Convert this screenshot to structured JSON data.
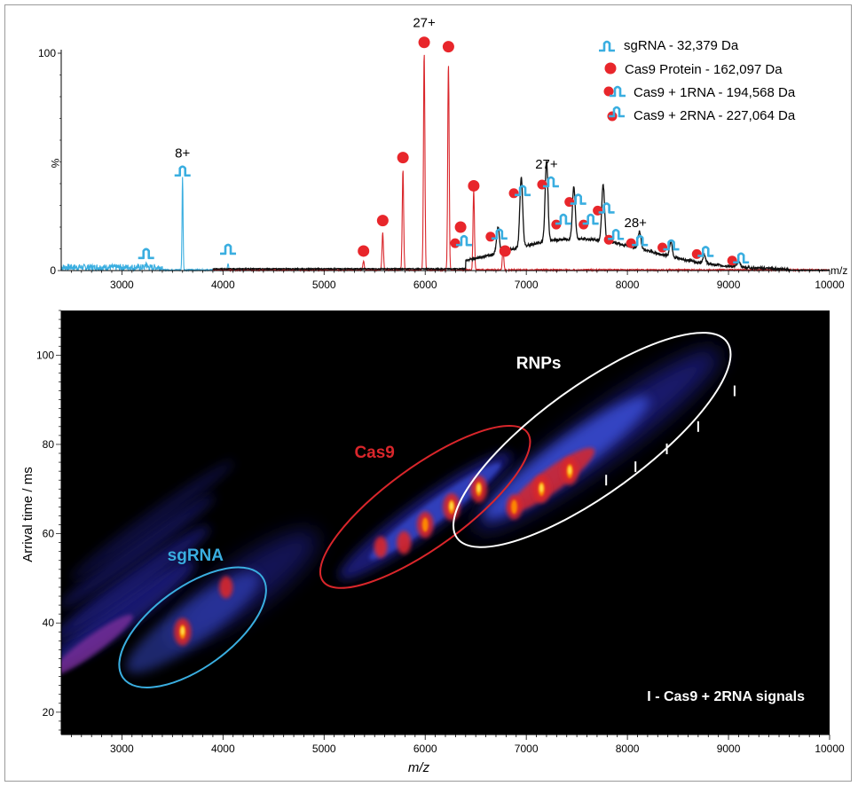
{
  "chart_data": [
    {
      "type": "line",
      "xlabel": "m/z",
      "ylabel": "%",
      "xlim": [
        2400,
        10000
      ],
      "ylim": [
        0,
        100
      ],
      "x_ticks": [
        3000,
        4000,
        5000,
        6000,
        7000,
        8000,
        9000,
        10000
      ],
      "y_ticks": [
        0,
        100
      ],
      "legend_position": "top-right",
      "legend": [
        {
          "label": "sgRNA - 32,379 Da",
          "marker": "rna-icon"
        },
        {
          "label": "Cas9 Protein - 162,097 Da",
          "marker": "red-dot"
        },
        {
          "label": "Cas9 + 1RNA - 194,568 Da",
          "marker": "dot-plus-one-rna"
        },
        {
          "label": "Cas9 + 2RNA - 227,064 Da",
          "marker": "dot-plus-two-rna"
        }
      ],
      "series": [
        {
          "color": "#3aaee0",
          "peaks": [
            {
              "x": 3240,
              "y": 2
            },
            {
              "x": 3600,
              "y": 43
            },
            {
              "x": 4050,
              "y": 3
            }
          ]
        },
        {
          "color": "#d9262b",
          "peaks": [
            {
              "x": 5390,
              "y": 4
            },
            {
              "x": 5580,
              "y": 17
            },
            {
              "x": 5780,
              "y": 46
            },
            {
              "x": 5990,
              "y": 100
            },
            {
              "x": 6230,
              "y": 95
            },
            {
              "x": 6480,
              "y": 37
            },
            {
              "x": 6770,
              "y": 10
            }
          ]
        },
        {
          "color": "#111111",
          "peaks": [
            {
              "x": 6720,
              "y": 12
            },
            {
              "x": 6950,
              "y": 32
            },
            {
              "x": 7200,
              "y": 37
            },
            {
              "x": 7470,
              "y": 24
            },
            {
              "x": 7760,
              "y": 26
            },
            {
              "x": 8120,
              "y": 8
            },
            {
              "x": 8430,
              "y": 7
            },
            {
              "x": 8760,
              "y": 4
            },
            {
              "x": 9100,
              "y": 3
            }
          ]
        }
      ],
      "markers": [
        {
          "x": 3240,
          "y": 7,
          "kind": "rna"
        },
        {
          "x": 3600,
          "y": 45,
          "kind": "rna"
        },
        {
          "x": 4050,
          "y": 9,
          "kind": "rna"
        },
        {
          "x": 5390,
          "y": 9,
          "kind": "dot"
        },
        {
          "x": 5580,
          "y": 23,
          "kind": "dot"
        },
        {
          "x": 5780,
          "y": 52,
          "kind": "dot"
        },
        {
          "x": 5990,
          "y": 105,
          "kind": "dot"
        },
        {
          "x": 6230,
          "y": 103,
          "kind": "dot"
        },
        {
          "x": 6480,
          "y": 39,
          "kind": "dot"
        },
        {
          "x": 6350,
          "y": 20,
          "kind": "dot"
        },
        {
          "x": 6790,
          "y": 9,
          "kind": "dot"
        },
        {
          "x": 6340,
          "y": 13,
          "kind": "dot1"
        },
        {
          "x": 6690,
          "y": 16,
          "kind": "dot1"
        },
        {
          "x": 6920,
          "y": 36,
          "kind": "dot1"
        },
        {
          "x": 7200,
          "y": 40,
          "kind": "dot1"
        },
        {
          "x": 7470,
          "y": 32,
          "kind": "dot1"
        },
        {
          "x": 7750,
          "y": 28,
          "kind": "dot1"
        },
        {
          "x": 8080,
          "y": 13,
          "kind": "dot1"
        },
        {
          "x": 8390,
          "y": 11,
          "kind": "dot1"
        },
        {
          "x": 8730,
          "y": 8,
          "kind": "dot1"
        },
        {
          "x": 9080,
          "y": 5,
          "kind": "dot1"
        },
        {
          "x": 7340,
          "y": 22,
          "kind": "dot2"
        },
        {
          "x": 7610,
          "y": 22,
          "kind": "dot2"
        },
        {
          "x": 7860,
          "y": 15,
          "kind": "dot2"
        }
      ],
      "annotations": [
        {
          "text": "27+",
          "x": 5990,
          "y": 112
        },
        {
          "text": "8+",
          "x": 3600,
          "y": 52
        },
        {
          "text": "27+",
          "x": 7200,
          "y": 47
        },
        {
          "text": "28+",
          "x": 8080,
          "y": 20
        }
      ]
    },
    {
      "type": "heatmap",
      "xlabel": "m/z",
      "ylabel": "Arrival time / ms",
      "xlim": [
        2400,
        10000
      ],
      "ylim": [
        15,
        110
      ],
      "x_ticks": [
        3000,
        4000,
        5000,
        6000,
        7000,
        8000,
        9000,
        10000
      ],
      "y_ticks": [
        20,
        40,
        60,
        80,
        100
      ],
      "colormap": [
        "#000000",
        "#1a1f7a",
        "#3a4fd8",
        "#d9262b",
        "#ff8c00",
        "#ffe24d"
      ],
      "regions": [
        {
          "label": "sgRNA",
          "color": "#3aaee0",
          "cx": 3700,
          "cy": 39,
          "rx_mz": 850,
          "ry_ms": 9
        },
        {
          "label": "Cas9",
          "color": "#d9262b",
          "cx": 6000,
          "cy": 66,
          "rx_mz": 1250,
          "ry_ms": 9
        },
        {
          "label": "RNPs",
          "color": "#ffffff",
          "cx": 7650,
          "cy": 81,
          "rx_mz": 1650,
          "ry_ms": 12
        }
      ],
      "hotspots": [
        {
          "x": 3600,
          "y": 38,
          "level": 0.9
        },
        {
          "x": 4030,
          "y": 48,
          "level": 0.4
        },
        {
          "x": 5560,
          "y": 57,
          "level": 0.35
        },
        {
          "x": 5790,
          "y": 58,
          "level": 0.5
        },
        {
          "x": 6000,
          "y": 62,
          "level": 0.8
        },
        {
          "x": 6260,
          "y": 66,
          "level": 0.9
        },
        {
          "x": 6530,
          "y": 70,
          "level": 0.85
        },
        {
          "x": 6880,
          "y": 66,
          "level": 0.7
        },
        {
          "x": 7150,
          "y": 70,
          "level": 0.95
        },
        {
          "x": 7430,
          "y": 74,
          "level": 0.9
        }
      ],
      "tick_markers": [
        {
          "x": 7790,
          "y": 72
        },
        {
          "x": 8080,
          "y": 75
        },
        {
          "x": 8390,
          "y": 79
        },
        {
          "x": 8700,
          "y": 84
        },
        {
          "x": 9060,
          "y": 92
        }
      ],
      "footnote": "I - Cas9 + 2RNA signals"
    }
  ]
}
